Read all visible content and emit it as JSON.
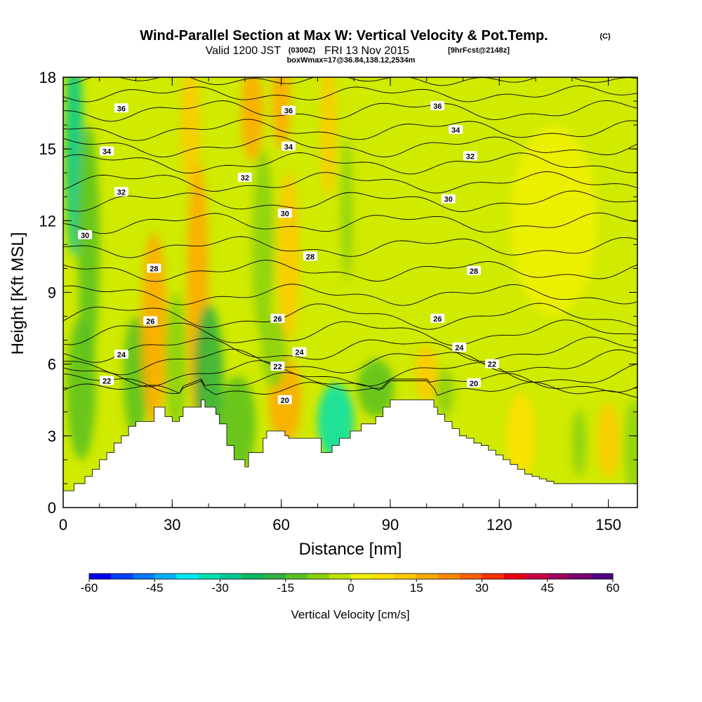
{
  "chart_data": {
    "type": "heatmap",
    "title": "Wind-Parallel Section at Max W: Vertical Velocity & Pot.Temp.",
    "title_mark": "(C)",
    "subtitle_valid": "Valid 1200 JST",
    "subtitle_utc": "(0300Z)",
    "subtitle_date": "FRI 13 Nov 2015",
    "subtitle_fcst": "[9hrFcst@2148z]",
    "subtitle_box": "boxWmax=17@36.84,138.12,2534m",
    "xlabel": "Distance [nm]",
    "ylabel": "Height [Kft MSL]",
    "xlim": [
      0,
      158
    ],
    "ylim": [
      0,
      18
    ],
    "xticks": [
      0,
      30,
      60,
      90,
      120,
      150
    ],
    "yticks": [
      0,
      3,
      6,
      9,
      12,
      15,
      18
    ],
    "colorbar": {
      "title": "Vertical Velocity [cm/s]",
      "ticks": [
        -60,
        -45,
        -30,
        -15,
        0,
        15,
        30,
        45,
        60
      ],
      "range": [
        -60,
        60
      ],
      "colors": [
        "#0000f0",
        "#0040ff",
        "#0078ff",
        "#00b0ff",
        "#00e8f0",
        "#00e0b0",
        "#00c890",
        "#10b860",
        "#30b040",
        "#58c020",
        "#88d010",
        "#c0e000",
        "#f0f000",
        "#ffe000",
        "#ffc800",
        "#ffa800",
        "#ff8800",
        "#ff6000",
        "#ff3000",
        "#e80010",
        "#c80040",
        "#a00060",
        "#780070",
        "#500080"
      ]
    },
    "terrain_profile": {
      "x": [
        0,
        3,
        6,
        8,
        10,
        12,
        14,
        16,
        18,
        20,
        25,
        26,
        28,
        30,
        32,
        33,
        38,
        39,
        42,
        43,
        45,
        47,
        48,
        50,
        51,
        55,
        56,
        60,
        61,
        62,
        64,
        68,
        70,
        71,
        72,
        74,
        76,
        78,
        79,
        82,
        84,
        86,
        88,
        90,
        92,
        100,
        102,
        103,
        105,
        107,
        109,
        111,
        113,
        115,
        117,
        119,
        121,
        123,
        125,
        127,
        129,
        131,
        133,
        135,
        158
      ],
      "y": [
        0.7,
        1.0,
        1.3,
        1.6,
        2.0,
        2.3,
        2.7,
        3.0,
        3.4,
        3.6,
        4.2,
        4.2,
        3.8,
        3.6,
        3.8,
        4.2,
        4.5,
        4.2,
        3.9,
        3.5,
        2.6,
        2.0,
        2.0,
        1.7,
        2.3,
        2.9,
        3.2,
        3.2,
        3.0,
        2.9,
        2.9,
        2.9,
        2.9,
        2.3,
        2.3,
        2.6,
        2.9,
        2.9,
        3.2,
        3.5,
        3.5,
        3.8,
        4.2,
        4.5,
        4.5,
        4.5,
        4.2,
        3.9,
        3.6,
        3.3,
        3.0,
        2.9,
        2.7,
        2.6,
        2.4,
        2.2,
        2.0,
        1.8,
        1.6,
        1.4,
        1.3,
        1.2,
        1.1,
        1.0,
        1.0
      ]
    },
    "velocity_features": [
      {
        "x": 3,
        "y": 15.0,
        "w": 2.5,
        "h": 4.5,
        "value": -30
      },
      {
        "x": 7,
        "y": 11.0,
        "w": 3.0,
        "h": 5.0,
        "value": -15
      },
      {
        "x": 5,
        "y": 5.0,
        "w": 4.0,
        "h": 3.0,
        "value": -12
      },
      {
        "x": 20,
        "y": 5.5,
        "w": 3.5,
        "h": 2.5,
        "value": -15
      },
      {
        "x": 25,
        "y": 7.5,
        "w": 3.5,
        "h": 4.0,
        "value": 15
      },
      {
        "x": 31,
        "y": 6.0,
        "w": 3.0,
        "h": 3.0,
        "value": -10
      },
      {
        "x": 37,
        "y": 9.0,
        "w": 3.0,
        "h": 5.5,
        "value": 15
      },
      {
        "x": 35,
        "y": 16.0,
        "w": 2.5,
        "h": 2.5,
        "value": 10
      },
      {
        "x": 40,
        "y": 5.5,
        "w": 4.0,
        "h": 3.0,
        "value": -20
      },
      {
        "x": 48,
        "y": 3.5,
        "w": 5.0,
        "h": 2.0,
        "value": -15
      },
      {
        "x": 52,
        "y": 16.5,
        "w": 3.0,
        "h": 2.0,
        "value": 15
      },
      {
        "x": 55,
        "y": 11.0,
        "w": 3.0,
        "h": 4.0,
        "value": -10
      },
      {
        "x": 60,
        "y": 17.0,
        "w": 2.5,
        "h": 2.0,
        "value": 15
      },
      {
        "x": 62,
        "y": 10.5,
        "w": 3.0,
        "h": 3.5,
        "value": 12
      },
      {
        "x": 61,
        "y": 4.5,
        "w": 4.5,
        "h": 1.8,
        "value": 18
      },
      {
        "x": 58,
        "y": 6.5,
        "w": 3.5,
        "h": 1.5,
        "value": -10
      },
      {
        "x": 75,
        "y": 3.6,
        "w": 5.0,
        "h": 1.6,
        "value": -35
      },
      {
        "x": 73,
        "y": 16.0,
        "w": 2.0,
        "h": 3.0,
        "value": 10
      },
      {
        "x": 78,
        "y": 12.5,
        "w": 1.5,
        "h": 3.0,
        "value": -10
      },
      {
        "x": 86,
        "y": 5.0,
        "w": 5.0,
        "h": 1.2,
        "value": -15
      },
      {
        "x": 100,
        "y": 5.6,
        "w": 3.0,
        "h": 1.2,
        "value": 10
      },
      {
        "x": 105,
        "y": 4.8,
        "w": 2.5,
        "h": 1.0,
        "value": -10
      },
      {
        "x": 126,
        "y": 3.0,
        "w": 4.0,
        "h": 1.8,
        "value": 8
      },
      {
        "x": 150,
        "y": 2.8,
        "w": 3.0,
        "h": 1.6,
        "value": 10
      },
      {
        "x": 142,
        "y": 2.7,
        "w": 2.0,
        "h": 1.4,
        "value": -8
      },
      {
        "x": 157,
        "y": 2.5,
        "w": 2.5,
        "h": 2.0,
        "value": -8
      },
      {
        "x": 135,
        "y": 12.0,
        "w": 12.0,
        "h": 4.0,
        "value": 3
      }
    ],
    "theta_contours": [
      {
        "level": 20,
        "base": 4.9,
        "amp": 0.2,
        "labels": [
          {
            "text": "20",
            "x": 61,
            "y": 4.5
          },
          {
            "text": "20",
            "x": 113,
            "y": 5.2
          }
        ]
      },
      {
        "level": 21,
        "base": 5.2,
        "amp": 0.3,
        "labels": []
      },
      {
        "level": 22,
        "base": 5.6,
        "amp": 0.4,
        "labels": [
          {
            "text": "22",
            "x": 12,
            "y": 5.3
          },
          {
            "text": "22",
            "x": 59,
            "y": 5.9
          },
          {
            "text": "22",
            "x": 118,
            "y": 6.0
          }
        ]
      },
      {
        "level": 23,
        "base": 6.1,
        "amp": 0.4,
        "labels": []
      },
      {
        "level": 24,
        "base": 6.6,
        "amp": 0.4,
        "labels": [
          {
            "text": "24",
            "x": 16,
            "y": 6.4
          },
          {
            "text": "24",
            "x": 65,
            "y": 6.5
          },
          {
            "text": "24",
            "x": 109,
            "y": 6.7
          }
        ]
      },
      {
        "level": 25,
        "base": 7.3,
        "amp": 0.4,
        "labels": []
      },
      {
        "level": 26,
        "base": 8.0,
        "amp": 0.4,
        "labels": [
          {
            "text": "26",
            "x": 24,
            "y": 7.8
          },
          {
            "text": "26",
            "x": 59,
            "y": 7.9
          },
          {
            "text": "26",
            "x": 103,
            "y": 7.9
          }
        ]
      },
      {
        "level": 27,
        "base": 8.9,
        "amp": 0.3,
        "labels": []
      },
      {
        "level": 28,
        "base": 9.9,
        "amp": 0.3,
        "labels": [
          {
            "text": "28",
            "x": 25,
            "y": 10.0
          },
          {
            "text": "28",
            "x": 68,
            "y": 10.5
          },
          {
            "text": "28",
            "x": 113,
            "y": 9.9
          }
        ]
      },
      {
        "level": 29,
        "base": 10.9,
        "amp": 0.3,
        "labels": []
      },
      {
        "level": 30,
        "base": 11.9,
        "amp": 0.3,
        "labels": [
          {
            "text": "30",
            "x": 6,
            "y": 11.4
          },
          {
            "text": "30",
            "x": 61,
            "y": 12.3
          },
          {
            "text": "30",
            "x": 106,
            "y": 12.9
          }
        ]
      },
      {
        "level": 31,
        "base": 12.8,
        "amp": 0.3,
        "labels": []
      },
      {
        "level": 32,
        "base": 13.6,
        "amp": 0.3,
        "labels": [
          {
            "text": "32",
            "x": 16,
            "y": 13.2
          },
          {
            "text": "32",
            "x": 50,
            "y": 13.8
          },
          {
            "text": "32",
            "x": 112,
            "y": 14.7
          }
        ]
      },
      {
        "level": 33,
        "base": 14.4,
        "amp": 0.3,
        "labels": []
      },
      {
        "level": 34,
        "base": 15.1,
        "amp": 0.3,
        "labels": [
          {
            "text": "34",
            "x": 12,
            "y": 14.9
          },
          {
            "text": "34",
            "x": 62,
            "y": 15.1
          },
          {
            "text": "34",
            "x": 108,
            "y": 15.8
          }
        ]
      },
      {
        "level": 35,
        "base": 15.8,
        "amp": 0.3,
        "labels": []
      },
      {
        "level": 36,
        "base": 16.6,
        "amp": 0.3,
        "labels": [
          {
            "text": "36",
            "x": 16,
            "y": 16.7
          },
          {
            "text": "36",
            "x": 62,
            "y": 16.6
          },
          {
            "text": "36",
            "x": 103,
            "y": 16.8
          }
        ]
      },
      {
        "level": 37,
        "base": 17.3,
        "amp": 0.2,
        "labels": []
      },
      {
        "level": 38,
        "base": 17.9,
        "amp": 0.1,
        "labels": []
      }
    ]
  }
}
